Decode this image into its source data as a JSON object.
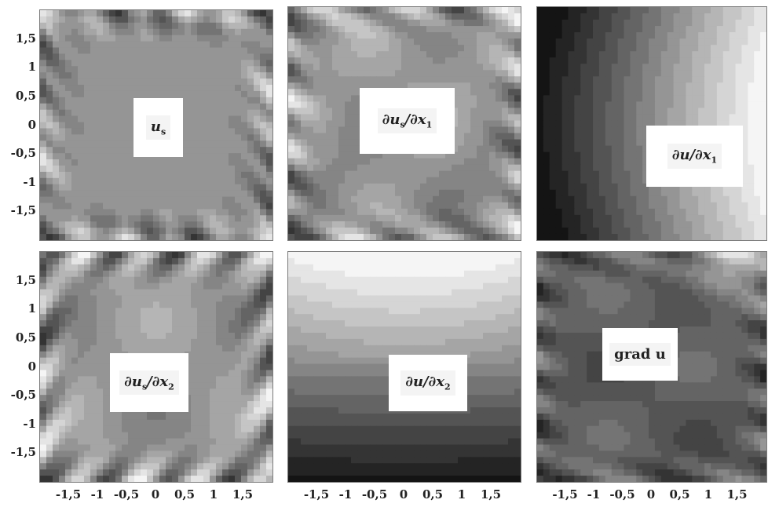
{
  "chart_data": [
    {
      "type": "heatmap",
      "label": "u_s",
      "label_main": "u",
      "label_sub": "s",
      "xlim": [
        -2,
        2
      ],
      "ylim": [
        -2,
        2
      ],
      "yticks": [
        "1,5",
        "1",
        "0,5",
        "0",
        "-0,5",
        "-1",
        "-1,5"
      ],
      "xticks": [],
      "colormap": "grayscale",
      "shading": "filled-contour"
    },
    {
      "type": "heatmap",
      "label": "∂u_s/∂x_1",
      "label_main": "∂u",
      "label_sub": "s",
      "label_tail": "/∂x",
      "label_tail_sub": "1",
      "xlim": [
        -2,
        2
      ],
      "ylim": [
        -2,
        2
      ],
      "yticks": [],
      "xticks": [],
      "colormap": "grayscale",
      "shading": "filled-contour"
    },
    {
      "type": "heatmap",
      "label": "∂u/∂x_1",
      "label_main": "∂u/∂x",
      "label_sub": "1",
      "xlim": [
        -2,
        2
      ],
      "ylim": [
        -2,
        2
      ],
      "yticks": [],
      "xticks": [],
      "colormap": "grayscale",
      "shading": "filled-contour"
    },
    {
      "type": "heatmap",
      "label": "∂u_s/∂x_2",
      "label_main": "∂u",
      "label_sub": "s",
      "label_tail": "/∂x",
      "label_tail_sub": "2",
      "xlim": [
        -2,
        2
      ],
      "ylim": [
        -2,
        2
      ],
      "yticks": [
        "1,5",
        "1",
        "0,5",
        "0",
        "-0,5",
        "-1",
        "-1,5"
      ],
      "xticks": [
        "-1,5",
        "-1",
        "-0,5",
        "0",
        "0,5",
        "1",
        "1,5"
      ],
      "colormap": "grayscale",
      "shading": "filled-contour"
    },
    {
      "type": "heatmap",
      "label": "∂u/∂x_2",
      "label_main": "∂u/∂x",
      "label_sub": "2",
      "xlim": [
        -2,
        2
      ],
      "ylim": [
        -2,
        2
      ],
      "yticks": [],
      "xticks": [
        "-1,5",
        "-1",
        "-0,5",
        "0",
        "0,5",
        "1",
        "1,5"
      ],
      "colormap": "grayscale",
      "shading": "filled-contour"
    },
    {
      "type": "heatmap",
      "label": "grad u",
      "label_main": "grad u",
      "label_sub": "",
      "xlim": [
        -2,
        2
      ],
      "ylim": [
        -2,
        2
      ],
      "yticks": [],
      "xticks": [
        "-1,5",
        "-1",
        "-0,5",
        "0",
        "0,5",
        "1",
        "1,5"
      ],
      "colormap": "grayscale",
      "shading": "filled-contour"
    }
  ]
}
